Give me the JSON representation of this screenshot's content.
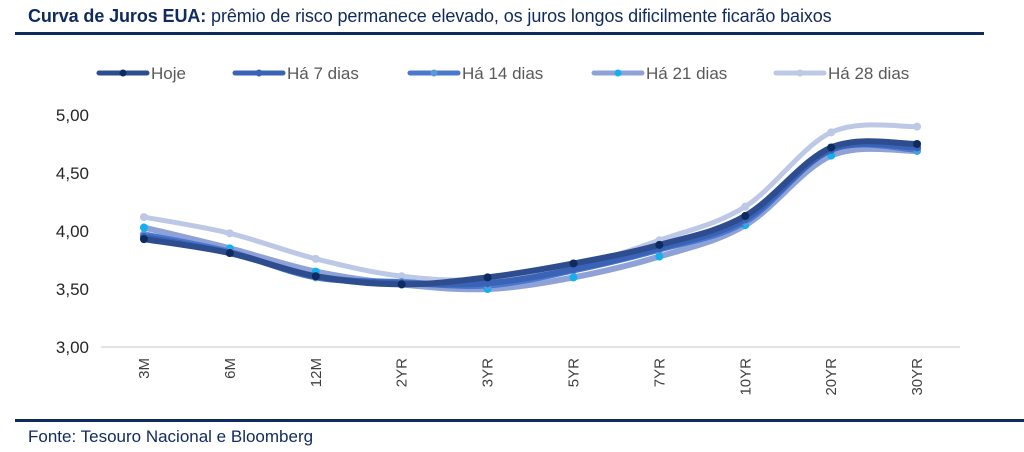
{
  "header": {
    "title_bold": "Curva de Juros EUA:",
    "title_rest": " prêmio de risco permanece elevado, os juros longos dificilmente ficarão baixos"
  },
  "footer": {
    "source": "Fonte: Tesouro Nacional e Bloomberg"
  },
  "chart_data": {
    "type": "line",
    "title": "Curva de Juros EUA: prêmio de risco permanece elevado, os juros longos dificilmente ficarão baixos",
    "xlabel": "",
    "ylabel": "",
    "categories": [
      "3M",
      "6M",
      "12M",
      "2YR",
      "3YR",
      "5YR",
      "7YR",
      "10YR",
      "20YR",
      "30YR"
    ],
    "ylim": [
      3.0,
      5.0
    ],
    "yticks": [
      3.0,
      3.5,
      4.0,
      4.5,
      5.0
    ],
    "ytick_labels": [
      "3,00",
      "3,50",
      "4,00",
      "4,50",
      "5,00"
    ],
    "grid": false,
    "legend_position": "top",
    "smooth": true,
    "series": [
      {
        "name": "Hoje",
        "color": "#2e4d8f",
        "marker_color": "#0f2a5e",
        "values": [
          3.93,
          3.81,
          3.61,
          3.54,
          3.6,
          3.72,
          3.88,
          4.13,
          4.72,
          4.75
        ]
      },
      {
        "name": "Há 7 dias",
        "color": "#3a63b8",
        "marker_color": "#3a63b8",
        "values": [
          3.95,
          3.81,
          3.61,
          3.55,
          3.55,
          3.67,
          3.85,
          4.1,
          4.7,
          4.72
        ]
      },
      {
        "name": "Há 14 dias",
        "color": "#4a78cc",
        "marker_color": "#5b9bd5",
        "values": [
          3.97,
          3.82,
          3.6,
          3.56,
          3.53,
          3.66,
          3.84,
          4.08,
          4.7,
          4.7
        ]
      },
      {
        "name": "Há 21 dias",
        "color": "#8ea2d8",
        "marker_color": "#12b0ef",
        "values": [
          4.03,
          3.85,
          3.65,
          3.54,
          3.5,
          3.6,
          3.78,
          4.05,
          4.65,
          4.69
        ]
      },
      {
        "name": "Há 28 dias",
        "color": "#bcc8e6",
        "marker_color": "#bcc8e6",
        "values": [
          4.12,
          3.98,
          3.76,
          3.61,
          3.58,
          3.69,
          3.92,
          4.21,
          4.85,
          4.9
        ]
      }
    ]
  }
}
